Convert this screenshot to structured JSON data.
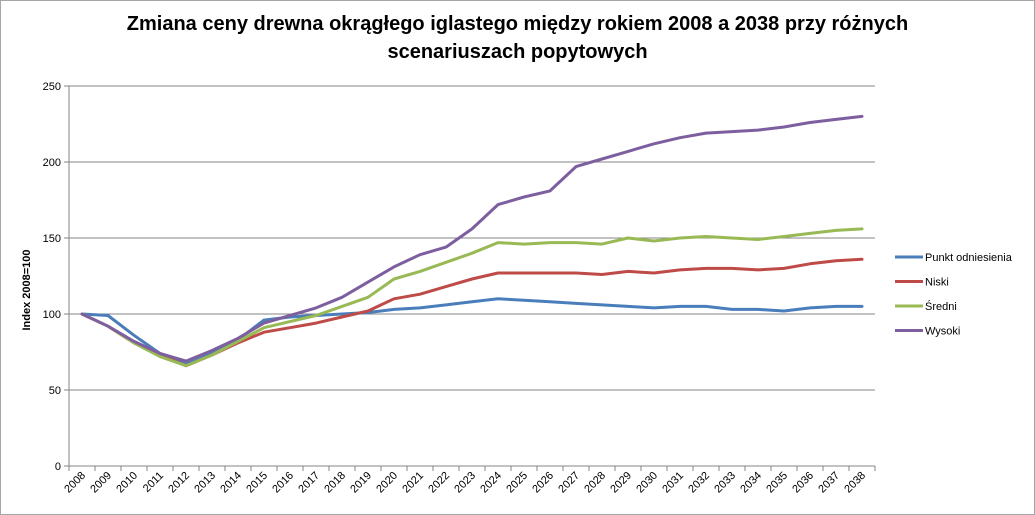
{
  "chart_data": {
    "type": "line",
    "title": "Zmiana ceny drewna okrągłego iglastego między rokiem 2008 a 2038 przy różnych scenariuszach popytowych",
    "title_lines": [
      "Zmiana ceny drewna okrągłego iglastego między rokiem 2008 a 2038 przy różnych",
      "scenariuszach popytowych"
    ],
    "xlabel": "",
    "ylabel": "Index 2008=100",
    "ylim": [
      0,
      250
    ],
    "yticks": [
      0,
      50,
      100,
      150,
      200,
      250
    ],
    "grid": true,
    "legend_position": "right",
    "x": [
      "2008",
      "2009",
      "2010",
      "2011",
      "2012",
      "2013",
      "2014",
      "2015",
      "2016",
      "2017",
      "2018",
      "2019",
      "2020",
      "2021",
      "2022",
      "2023",
      "2024",
      "2025",
      "2026",
      "2027",
      "2028",
      "2029",
      "2030",
      "2031",
      "2032",
      "2033",
      "2034",
      "2035",
      "2036",
      "2037",
      "2038"
    ],
    "series": [
      {
        "name": "Punkt odniesienia",
        "color": "#4a7ebb",
        "values": [
          100,
          99,
          86,
          74,
          67,
          74,
          83,
          96,
          98,
          99,
          100,
          101,
          103,
          104,
          106,
          108,
          110,
          109,
          108,
          107,
          106,
          105,
          104,
          105,
          105,
          103,
          103,
          102,
          104,
          105,
          105
        ]
      },
      {
        "name": "Niski",
        "color": "#be4b48",
        "values": [
          100,
          92,
          81,
          73,
          66,
          73,
          81,
          88,
          91,
          94,
          98,
          102,
          110,
          113,
          118,
          123,
          127,
          127,
          127,
          127,
          126,
          128,
          127,
          129,
          130,
          130,
          129,
          130,
          133,
          135,
          136
        ]
      },
      {
        "name": "Średni",
        "color": "#98b954",
        "values": [
          100,
          92,
          81,
          72,
          66,
          73,
          82,
          91,
          95,
          99,
          105,
          111,
          123,
          128,
          134,
          140,
          147,
          146,
          147,
          147,
          146,
          150,
          148,
          150,
          151,
          150,
          149,
          151,
          153,
          155,
          156
        ]
      },
      {
        "name": "Wysoki",
        "color": "#7d5fa0",
        "values": [
          100,
          92,
          82,
          74,
          69,
          76,
          84,
          94,
          99,
          104,
          111,
          121,
          131,
          139,
          144,
          156,
          172,
          177,
          181,
          197,
          202,
          207,
          212,
          216,
          219,
          220,
          221,
          223,
          226,
          228,
          230
        ]
      }
    ]
  }
}
